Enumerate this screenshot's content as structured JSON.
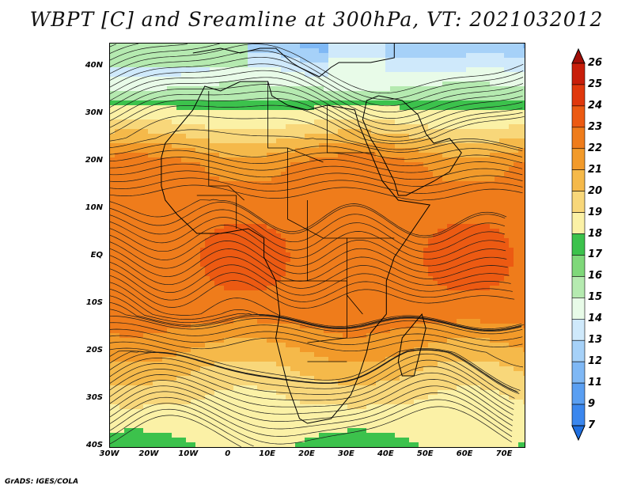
{
  "title": "WBPT [C] and Sreamline at 300hPa, VT: 2021032012",
  "credit": "GrADS: IGES/COLA",
  "lat_labels": [
    "40N",
    "30N",
    "20N",
    "10N",
    "EQ",
    "10S",
    "20S",
    "30S",
    "40S"
  ],
  "lon_labels": [
    "30W",
    "20W",
    "10W",
    "0",
    "10E",
    "20E",
    "30E",
    "40E",
    "50E",
    "60E",
    "70E"
  ],
  "map": {
    "lon_range": [
      -30,
      75
    ],
    "lat_range": [
      -40,
      45
    ],
    "field": "wet-bulb potential temperature (shaded)",
    "overlay": "streamlines",
    "coastlines": true,
    "country_borders": true
  },
  "colorbar": {
    "levels": [
      "7",
      "9",
      "11",
      "12",
      "13",
      "14",
      "15",
      "16",
      "17",
      "18",
      "19",
      "20",
      "21",
      "22",
      "23",
      "24",
      "25",
      "26"
    ],
    "colors": [
      "#1f6fe0",
      "#3b87ee",
      "#5a9ff2",
      "#7fb8f5",
      "#a6d1f8",
      "#cfe9fb",
      "#e8fbe8",
      "#b5eab0",
      "#7fd87a",
      "#3cc24c",
      "#fbf1a6",
      "#f8d77a",
      "#f5b94a",
      "#f29a2a",
      "#ef7c1b",
      "#ec5a12",
      "#e0380c",
      "#c81e0a",
      "#a20f08"
    ]
  }
}
